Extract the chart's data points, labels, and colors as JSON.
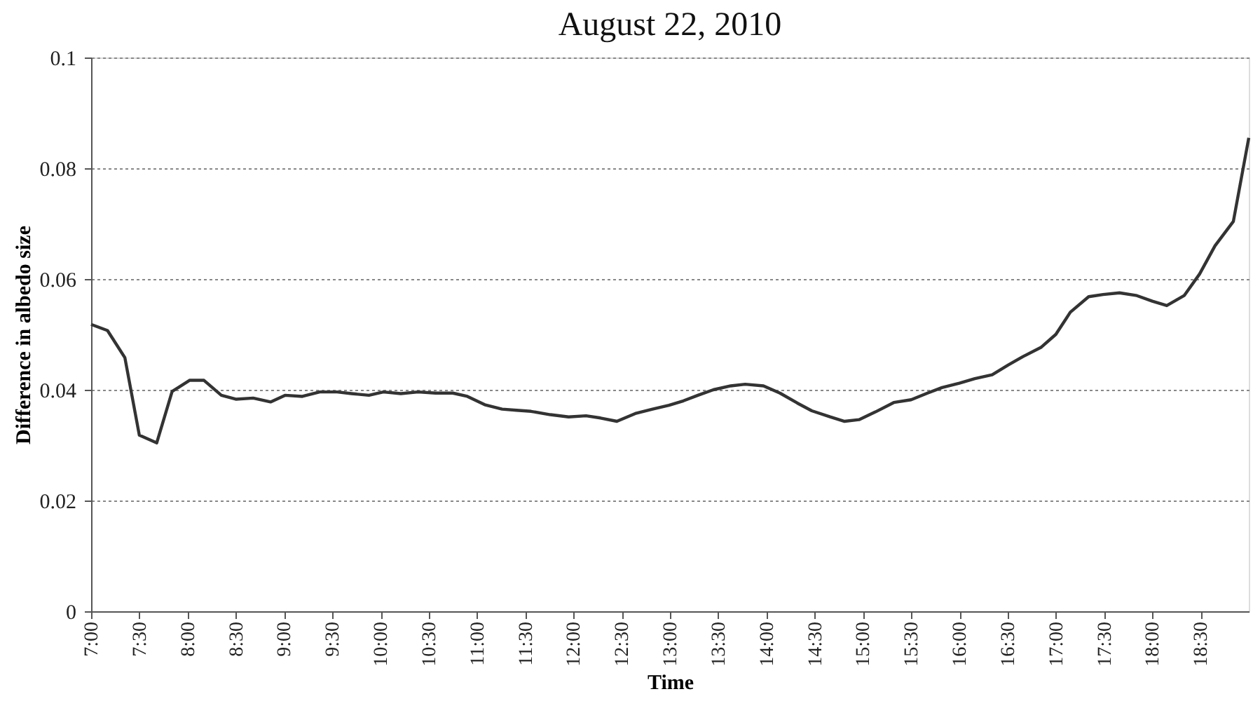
{
  "chart_data": {
    "type": "line",
    "title": "August 22, 2010",
    "xlabel": "Time",
    "ylabel": "Difference in albedo size",
    "x": [
      7.0,
      7.17,
      7.35,
      7.5,
      7.68,
      7.84,
      8.02,
      8.17,
      8.35,
      8.5,
      8.68,
      8.86,
      9.01,
      9.19,
      9.37,
      9.55,
      9.7,
      9.88,
      10.03,
      10.21,
      10.39,
      10.57,
      10.75,
      10.9,
      11.08,
      11.26,
      11.41,
      11.56,
      11.76,
      11.95,
      12.13,
      12.28,
      12.45,
      12.64,
      12.82,
      12.99,
      13.14,
      13.29,
      13.45,
      13.63,
      13.78,
      13.97,
      14.14,
      14.32,
      14.47,
      14.66,
      14.81,
      14.96,
      15.13,
      15.32,
      15.5,
      15.67,
      15.82,
      16.0,
      16.16,
      16.34,
      16.51,
      16.66,
      16.85,
      17.0,
      17.15,
      17.34,
      17.49,
      17.66,
      17.84,
      18.0,
      18.15,
      18.33,
      18.49,
      18.65,
      18.84,
      19.0
    ],
    "series": [
      {
        "color": "#333333",
        "values": [
          0.0518,
          0.0507,
          0.0458,
          0.0318,
          0.0304,
          0.0397,
          0.0417,
          0.0417,
          0.039,
          0.0383,
          0.0385,
          0.0378,
          0.039,
          0.0388,
          0.0396,
          0.0396,
          0.0393,
          0.039,
          0.0396,
          0.0393,
          0.0396,
          0.0394,
          0.0394,
          0.0388,
          0.0373,
          0.0365,
          0.0363,
          0.0361,
          0.0355,
          0.0351,
          0.0353,
          0.0349,
          0.0343,
          0.0357,
          0.0365,
          0.0372,
          0.038,
          0.039,
          0.04,
          0.0407,
          0.041,
          0.0407,
          0.0394,
          0.0376,
          0.0362,
          0.0351,
          0.0343,
          0.0346,
          0.036,
          0.0377,
          0.0382,
          0.0394,
          0.0404,
          0.0412,
          0.042,
          0.0427,
          0.0445,
          0.046,
          0.0477,
          0.05,
          0.054,
          0.0568,
          0.0572,
          0.0575,
          0.057,
          0.056,
          0.0552,
          0.057,
          0.0609,
          0.066,
          0.0704,
          0.0855
        ]
      }
    ],
    "xlim": [
      7,
      19
    ],
    "xticks": [
      {
        "value": 7,
        "label": "7:00"
      },
      {
        "value": 7.5,
        "label": "7:30"
      },
      {
        "value": 8,
        "label": "8:00"
      },
      {
        "value": 8.5,
        "label": "8:30"
      },
      {
        "value": 9,
        "label": "9:00"
      },
      {
        "value": 9.5,
        "label": "9:30"
      },
      {
        "value": 10,
        "label": "10:00"
      },
      {
        "value": 10.5,
        "label": "10:30"
      },
      {
        "value": 11,
        "label": "11:00"
      },
      {
        "value": 11.5,
        "label": "11:30"
      },
      {
        "value": 12,
        "label": "12:00"
      },
      {
        "value": 12.5,
        "label": "12:30"
      },
      {
        "value": 13,
        "label": "13:00"
      },
      {
        "value": 13.5,
        "label": "13:30"
      },
      {
        "value": 14,
        "label": "14:00"
      },
      {
        "value": 14.5,
        "label": "14:30"
      },
      {
        "value": 15,
        "label": "15:00"
      },
      {
        "value": 15.5,
        "label": "15:30"
      },
      {
        "value": 16,
        "label": "16:00"
      },
      {
        "value": 16.5,
        "label": "16:30"
      },
      {
        "value": 17,
        "label": "17:00"
      },
      {
        "value": 17.5,
        "label": "17:30"
      },
      {
        "value": 18,
        "label": "18:00"
      },
      {
        "value": 18.5,
        "label": "18:30"
      }
    ],
    "ylim": [
      0,
      0.1
    ],
    "yticks": [
      0,
      0.02,
      0.04,
      0.06,
      0.08,
      0.1
    ],
    "grid": "y",
    "marker": "none",
    "line_style": "solid"
  }
}
